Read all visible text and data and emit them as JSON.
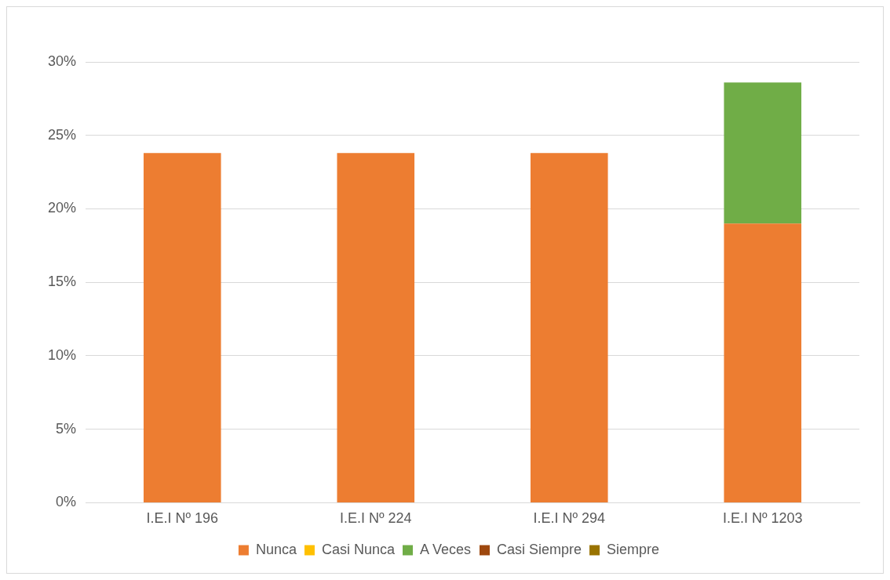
{
  "chart_data": {
    "type": "bar",
    "stacked": true,
    "categories": [
      "I.E.I Nº 196",
      "I.E.I Nº 224",
      "I.E.I Nº 294",
      "I.E.I Nº 1203"
    ],
    "series": [
      {
        "name": "Nunca",
        "color": "#ed7d31",
        "values": [
          23.8,
          23.8,
          23.8,
          19.0
        ]
      },
      {
        "name": "Casi Nunca",
        "color": "#ffc000",
        "values": [
          0,
          0,
          0,
          0
        ]
      },
      {
        "name": "A Veces",
        "color": "#70ad47",
        "values": [
          0,
          0,
          0,
          9.6
        ]
      },
      {
        "name": "Casi Siempre",
        "color": "#9e480e",
        "values": [
          0,
          0,
          0,
          0
        ]
      },
      {
        "name": "Siempre",
        "color": "#997300",
        "values": [
          0,
          0,
          0,
          0
        ]
      }
    ],
    "ylim": [
      0,
      30
    ],
    "yticks": [
      {
        "value": 0,
        "label": "0%"
      },
      {
        "value": 5,
        "label": "5%"
      },
      {
        "value": 10,
        "label": "10%"
      },
      {
        "value": 15,
        "label": "15%"
      },
      {
        "value": 20,
        "label": "20%"
      },
      {
        "value": 25,
        "label": "25%"
      },
      {
        "value": 30,
        "label": "30%"
      }
    ],
    "grid": "y",
    "legend": "bottom"
  }
}
